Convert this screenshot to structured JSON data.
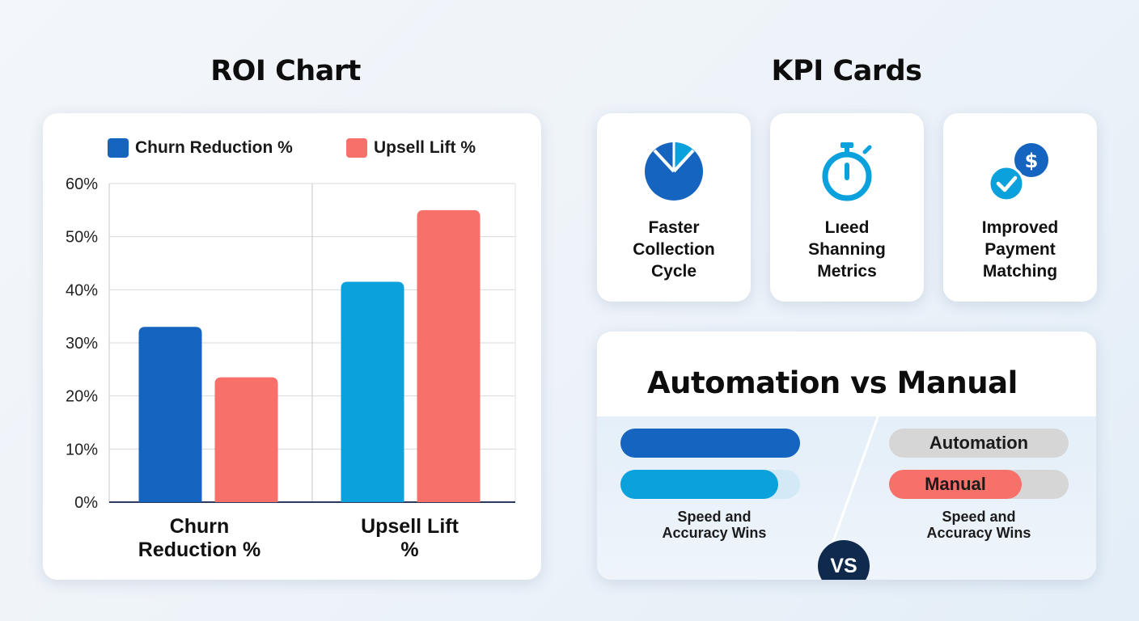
{
  "roi": {
    "title": "ROI Chart"
  },
  "kpi": {
    "title": "KPI Cards",
    "cards": [
      {
        "label": "Faster\nCollection\nCycle",
        "icon": "pie-clock-icon"
      },
      {
        "label": "Lıeed\nShanning\nMetrics",
        "icon": "stopwatch-icon"
      },
      {
        "label": "Improved\nPayment\nMatching",
        "icon": "payment-check-icon"
      }
    ]
  },
  "automation": {
    "title": "Automation vs Manual",
    "vs": "VS",
    "left_caption": "Speed and\nAccuracy Wins",
    "right_caption": "Speed and\nAccuracy Wins",
    "automation_label": "Automation",
    "manual_label": "Manual",
    "left_bars": [
      1.0,
      0.88
    ],
    "right_bars": [
      0.0,
      0.74
    ]
  },
  "colors": {
    "dark_blue": "#1565c0",
    "light_blue": "#0aa1dd",
    "coral": "#f8706a",
    "track_gray": "#d6d6d6",
    "navy": "#0f2a4d"
  },
  "chart_data": {
    "type": "bar",
    "legend": [
      "Churn Reduction %",
      "Upsell Lift %"
    ],
    "categories": [
      "Churn\nReduction %",
      "Upsell Lift\n%"
    ],
    "series": [
      {
        "values": [
          33,
          41.5
        ],
        "colors": [
          "#1565c0",
          "#0aa1dd"
        ]
      },
      {
        "values": [
          23.5,
          55
        ],
        "colors": [
          "#f8706a",
          "#f8706a"
        ]
      }
    ],
    "ylim": [
      0,
      60
    ],
    "yticks": [
      0,
      10,
      20,
      30,
      40,
      50,
      60
    ],
    "ytick_labels": [
      "0%",
      "10%",
      "20%",
      "30%",
      "40%",
      "50%",
      "60%"
    ],
    "grid": true,
    "legend_position": "top"
  }
}
